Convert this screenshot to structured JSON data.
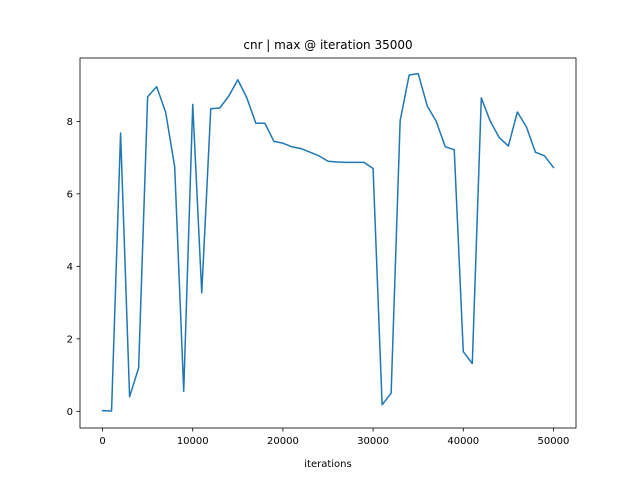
{
  "chart_data": {
    "type": "line",
    "title": "cnr | max @ iteration 35000",
    "xlabel": "iterations",
    "ylabel": "",
    "xlim": [
      -2500,
      52500
    ],
    "ylim": [
      -0.46,
      9.75
    ],
    "xticks": [
      0,
      10000,
      20000,
      30000,
      40000,
      50000
    ],
    "xtick_labels": [
      "0",
      "10000",
      "20000",
      "30000",
      "40000",
      "50000"
    ],
    "yticks": [
      0,
      2,
      4,
      6,
      8
    ],
    "ytick_labels": [
      "0",
      "2",
      "4",
      "6",
      "8"
    ],
    "grid": false,
    "series": [
      {
        "color": "#1f77b4",
        "x": [
          0,
          1000,
          2000,
          3000,
          4000,
          5000,
          6000,
          7000,
          8000,
          9000,
          10000,
          11000,
          12000,
          13000,
          14000,
          15000,
          16000,
          17000,
          18000,
          19000,
          20000,
          21000,
          22000,
          23000,
          24000,
          25000,
          26000,
          27000,
          28000,
          29000,
          30000,
          31000,
          32000,
          33000,
          34000,
          35000,
          36000,
          37000,
          38000,
          39000,
          40000,
          41000,
          42000,
          43000,
          44000,
          45000,
          46000,
          47000,
          48000,
          49000,
          50000
        ],
        "y": [
          0.02,
          0.01,
          7.68,
          0.4,
          1.2,
          8.68,
          8.96,
          8.25,
          6.75,
          0.55,
          8.47,
          3.27,
          8.35,
          8.37,
          8.7,
          9.15,
          8.65,
          7.95,
          7.95,
          7.45,
          7.4,
          7.3,
          7.25,
          7.15,
          7.05,
          6.9,
          6.88,
          6.87,
          6.87,
          6.87,
          6.7,
          0.18,
          0.5,
          8.02,
          9.28,
          9.32,
          8.43,
          8.0,
          7.3,
          7.22,
          1.65,
          1.32,
          8.65,
          8.0,
          7.55,
          7.32,
          8.26,
          7.85,
          7.15,
          7.05,
          6.73
        ]
      }
    ]
  }
}
